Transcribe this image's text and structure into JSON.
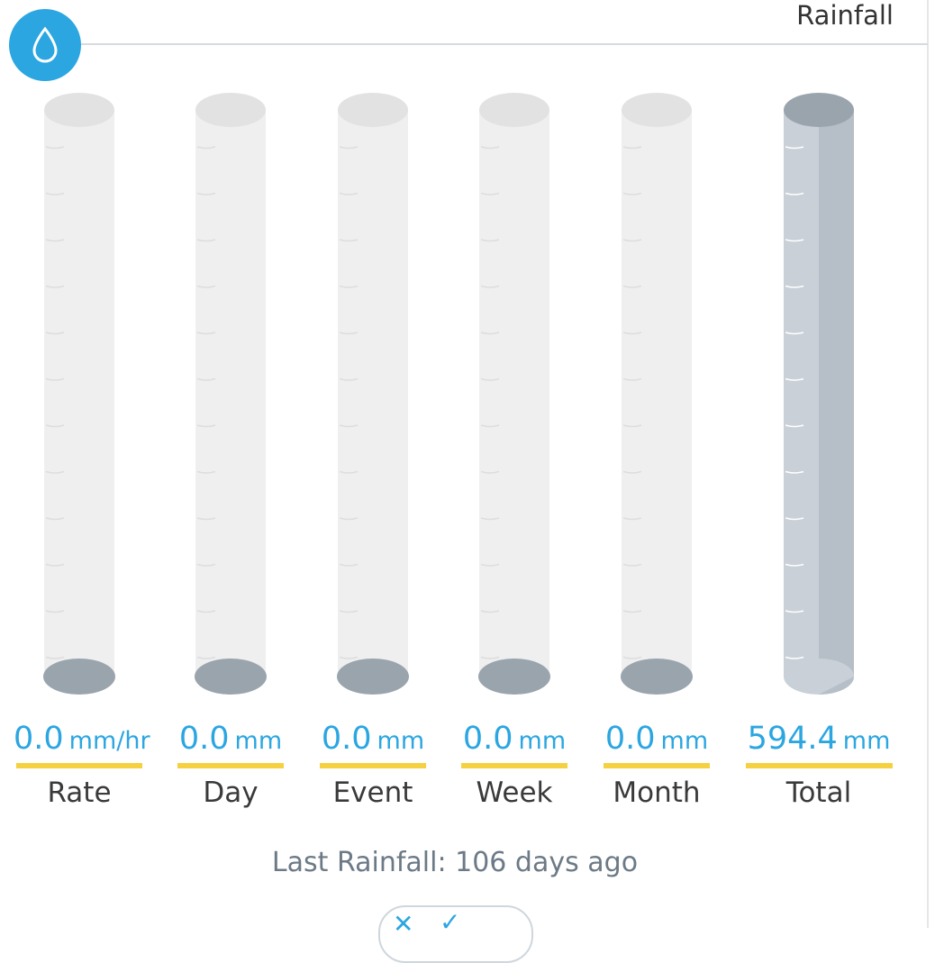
{
  "header": {
    "title": "Rainfall"
  },
  "icon": {
    "name": "water-drop-icon",
    "color": "#2ba6e1"
  },
  "gauges": [
    {
      "key": "rate",
      "value": "0.0",
      "unit": "mm/hr",
      "label": "Rate",
      "fill": 0
    },
    {
      "key": "day",
      "value": "0.0",
      "unit": "mm",
      "label": "Day",
      "fill": 0
    },
    {
      "key": "event",
      "value": "0.0",
      "unit": "mm",
      "label": "Event",
      "fill": 0
    },
    {
      "key": "week",
      "value": "0.0",
      "unit": "mm",
      "label": "Week",
      "fill": 0
    },
    {
      "key": "month",
      "value": "0.0",
      "unit": "mm",
      "label": "Month",
      "fill": 0
    },
    {
      "key": "total",
      "value": "594.4",
      "unit": "mm",
      "label": "Total",
      "fill": 1
    }
  ],
  "footer": {
    "last_rainfall": "Last Rainfall: 106 days ago"
  },
  "toggle": {
    "off_icon": "close-icon",
    "on_icon": "check-icon"
  },
  "colors": {
    "accent": "#2ba6e1",
    "underline": "#f5d142",
    "tube_empty": "#efefef",
    "tube_fill": "#c9d0d7",
    "tube_base": "#9aa4ad"
  }
}
